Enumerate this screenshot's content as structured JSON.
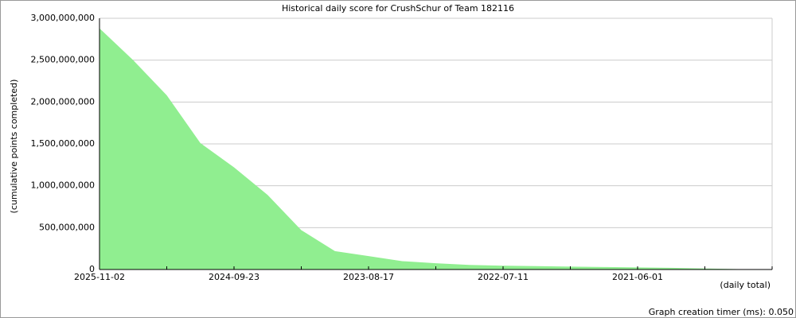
{
  "chart_data": {
    "type": "area",
    "title": "Historical daily score for CrushSchur of Team 182116",
    "y_label": "(cumulative points completed)",
    "x_label": "(daily total)",
    "footer": "Graph creation timer (ms): 0.050",
    "categories": [
      "2025-11-02",
      null,
      null,
      null,
      "2024-09-23",
      null,
      null,
      null,
      "2023-08-17",
      null,
      null,
      null,
      "2022-07-11",
      null,
      null,
      null,
      "2021-06-01",
      null,
      null,
      null,
      null
    ],
    "values": [
      2880000000,
      2500000000,
      2080000000,
      1510000000,
      1220000000,
      890000000,
      470000000,
      220000000,
      160000000,
      100000000,
      75000000,
      55000000,
      45000000,
      40000000,
      35000000,
      30000000,
      25000000,
      20000000,
      12000000,
      5000000,
      null
    ],
    "color": "#90ee90",
    "ylim": [
      0,
      3000000000
    ],
    "yticks": [
      {
        "value": 0,
        "label": "0"
      },
      {
        "value": 500000000,
        "label": "500,000,000"
      },
      {
        "value": 1000000000,
        "label": "1,000,000,000"
      },
      {
        "value": 1500000000,
        "label": "1,500,000,000"
      },
      {
        "value": 2000000000,
        "label": "2,000,000,000"
      },
      {
        "value": 2500000000,
        "label": "2,500,000,000"
      },
      {
        "value": 3000000000,
        "label": "3,000,000,000"
      }
    ],
    "grid": true
  }
}
